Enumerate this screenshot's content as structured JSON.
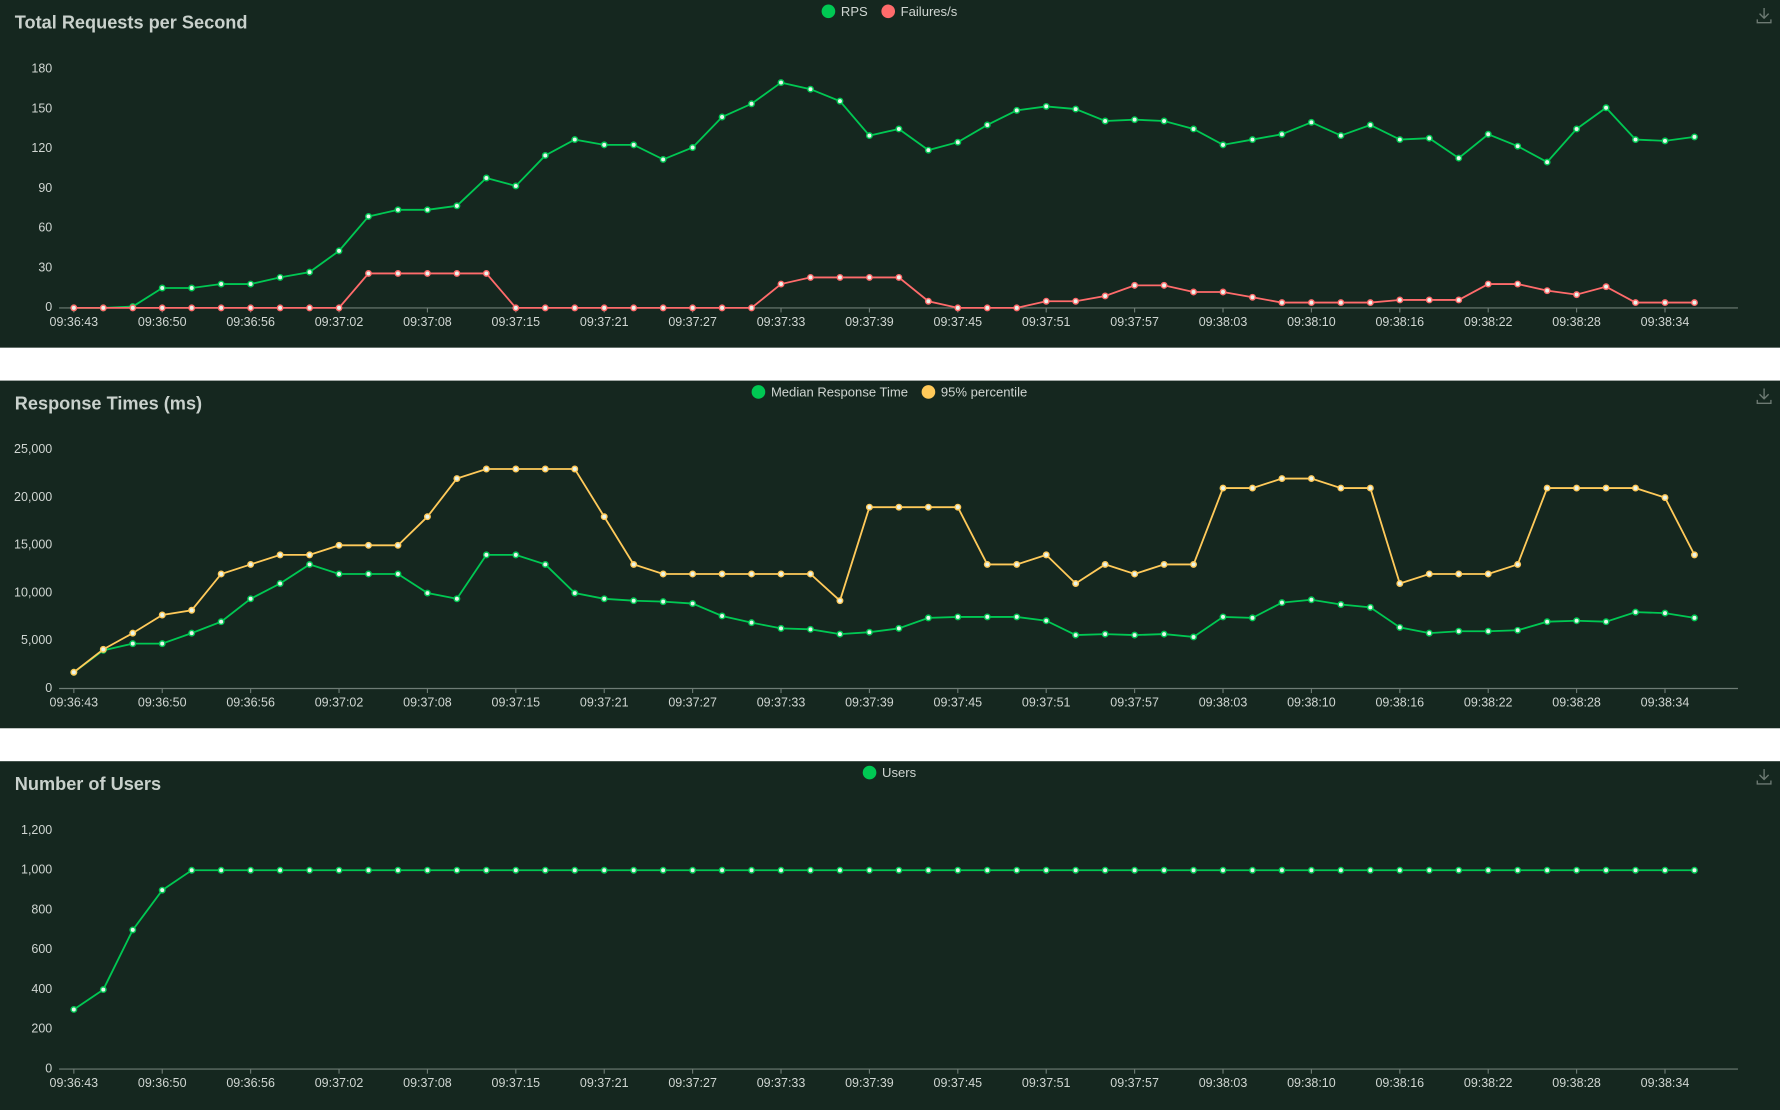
{
  "chart_data": [
    {
      "type": "line",
      "title": "Total Requests per Second",
      "legend": "top",
      "categories": [
        "09:36:43",
        null,
        null,
        "09:36:50",
        null,
        null,
        "09:36:56",
        null,
        null,
        "09:37:02",
        null,
        null,
        "09:37:08",
        null,
        null,
        "09:37:15",
        null,
        null,
        "09:37:21",
        null,
        null,
        "09:37:27",
        null,
        null,
        "09:37:33",
        null,
        null,
        "09:37:39",
        null,
        null,
        "09:37:45",
        null,
        null,
        "09:37:51",
        null,
        null,
        "09:37:57",
        null,
        null,
        "09:38:03",
        null,
        null,
        "09:38:10",
        null,
        null,
        "09:38:16",
        null,
        null,
        "09:38:22",
        null,
        null,
        "09:38:28",
        null,
        null,
        "09:38:34",
        null
      ],
      "series": [
        {
          "name": "RPS",
          "color": "#00c853",
          "values": [
            0,
            0,
            1,
            15,
            15,
            18,
            18,
            23,
            27,
            43,
            69,
            74,
            74,
            77,
            98,
            92,
            115,
            127,
            123,
            123,
            112,
            121,
            144,
            154,
            170,
            165,
            156,
            130,
            135,
            119,
            125,
            138,
            149,
            152,
            150,
            141,
            142,
            141,
            135,
            123,
            127,
            131,
            140,
            130,
            138,
            127,
            128,
            113,
            131,
            122,
            110,
            135,
            151,
            127,
            126,
            129
          ]
        },
        {
          "name": "Failures/s",
          "color": "#ff6b6b",
          "values": [
            0,
            0,
            0,
            0,
            0,
            0,
            0,
            0,
            0,
            0,
            26,
            26,
            26,
            26,
            26,
            0,
            0,
            0,
            0,
            0,
            0,
            0,
            0,
            0,
            18,
            23,
            23,
            23,
            23,
            5,
            0,
            0,
            0,
            5,
            5,
            9,
            17,
            17,
            12,
            12,
            8,
            4,
            4,
            4,
            4,
            6,
            6,
            6,
            18,
            18,
            13,
            10,
            16,
            4,
            4,
            4
          ]
        }
      ],
      "ylim": [
        0,
        180
      ],
      "yticks": [
        0,
        30,
        60,
        90,
        120,
        150,
        180
      ],
      "grid": false
    },
    {
      "type": "line",
      "title": "Response Times (ms)",
      "legend": "top",
      "categories": [
        "09:36:43",
        null,
        null,
        "09:36:50",
        null,
        null,
        "09:36:56",
        null,
        null,
        "09:37:02",
        null,
        null,
        "09:37:08",
        null,
        null,
        "09:37:15",
        null,
        null,
        "09:37:21",
        null,
        null,
        "09:37:27",
        null,
        null,
        "09:37:33",
        null,
        null,
        "09:37:39",
        null,
        null,
        "09:37:45",
        null,
        null,
        "09:37:51",
        null,
        null,
        "09:37:57",
        null,
        null,
        "09:38:03",
        null,
        null,
        "09:38:10",
        null,
        null,
        "09:38:16",
        null,
        null,
        "09:38:22",
        null,
        null,
        "09:38:28",
        null,
        null,
        "09:38:34",
        null
      ],
      "series": [
        {
          "name": "Median Response Time",
          "color": "#00c853",
          "values": [
            1700,
            4000,
            4700,
            4700,
            5800,
            7000,
            9400,
            11000,
            13000,
            12000,
            12000,
            12000,
            10000,
            9400,
            14000,
            14000,
            13000,
            10000,
            9400,
            9200,
            9100,
            8900,
            7600,
            6900,
            6300,
            6200,
            5700,
            5900,
            6300,
            7400,
            7500,
            7500,
            7500,
            7100,
            5600,
            5700,
            5600,
            5700,
            5400,
            7500,
            7400,
            9000,
            9300,
            8800,
            8500,
            6400,
            5800,
            6000,
            6000,
            6100,
            7000,
            7100,
            7000,
            8000,
            7900,
            7400
          ]
        },
        {
          "name": "95% percentile",
          "color": "#ffca5a",
          "values": [
            1700,
            4100,
            5800,
            7700,
            8200,
            12000,
            13000,
            14000,
            14000,
            15000,
            15000,
            15000,
            18000,
            22000,
            23000,
            23000,
            23000,
            23000,
            18000,
            13000,
            12000,
            12000,
            12000,
            12000,
            12000,
            12000,
            9200,
            19000,
            19000,
            19000,
            19000,
            13000,
            13000,
            14000,
            11000,
            13000,
            12000,
            13000,
            13000,
            21000,
            21000,
            22000,
            22000,
            21000,
            21000,
            11000,
            12000,
            12000,
            12000,
            13000,
            21000,
            21000,
            21000,
            21000,
            20000,
            14000
          ]
        }
      ],
      "ylim": [
        0,
        25000
      ],
      "yticks": [
        0,
        {
          "value": 5000,
          "label": "5,000"
        },
        {
          "value": 10000,
          "label": "10,000"
        },
        {
          "value": 15000,
          "label": "15,000"
        },
        {
          "value": 20000,
          "label": "20,000"
        },
        {
          "value": 25000,
          "label": "25,000"
        }
      ],
      "grid": false
    },
    {
      "type": "line",
      "title": "Number of Users",
      "legend": "top",
      "categories": [
        "09:36:43",
        null,
        null,
        "09:36:50",
        null,
        null,
        "09:36:56",
        null,
        null,
        "09:37:02",
        null,
        null,
        "09:37:08",
        null,
        null,
        "09:37:15",
        null,
        null,
        "09:37:21",
        null,
        null,
        "09:37:27",
        null,
        null,
        "09:37:33",
        null,
        null,
        "09:37:39",
        null,
        null,
        "09:37:45",
        null,
        null,
        "09:37:51",
        null,
        null,
        "09:37:57",
        null,
        null,
        "09:38:03",
        null,
        null,
        "09:38:10",
        null,
        null,
        "09:38:16",
        null,
        null,
        "09:38:22",
        null,
        null,
        "09:38:28",
        null,
        null,
        "09:38:34",
        null
      ],
      "series": [
        {
          "name": "Users",
          "color": "#00c853",
          "values": [
            300,
            400,
            700,
            900,
            1000,
            1000,
            1000,
            1000,
            1000,
            1000,
            1000,
            1000,
            1000,
            1000,
            1000,
            1000,
            1000,
            1000,
            1000,
            1000,
            1000,
            1000,
            1000,
            1000,
            1000,
            1000,
            1000,
            1000,
            1000,
            1000,
            1000,
            1000,
            1000,
            1000,
            1000,
            1000,
            1000,
            1000,
            1000,
            1000,
            1000,
            1000,
            1000,
            1000,
            1000,
            1000,
            1000,
            1000,
            1000,
            1000,
            1000,
            1000,
            1000,
            1000,
            1000,
            1000
          ]
        }
      ],
      "ylim": [
        0,
        1200
      ],
      "yticks": [
        0,
        200,
        400,
        600,
        800,
        {
          "value": 1000,
          "label": "1,000"
        },
        {
          "value": 1200,
          "label": "1,200"
        }
      ],
      "grid": false
    }
  ]
}
